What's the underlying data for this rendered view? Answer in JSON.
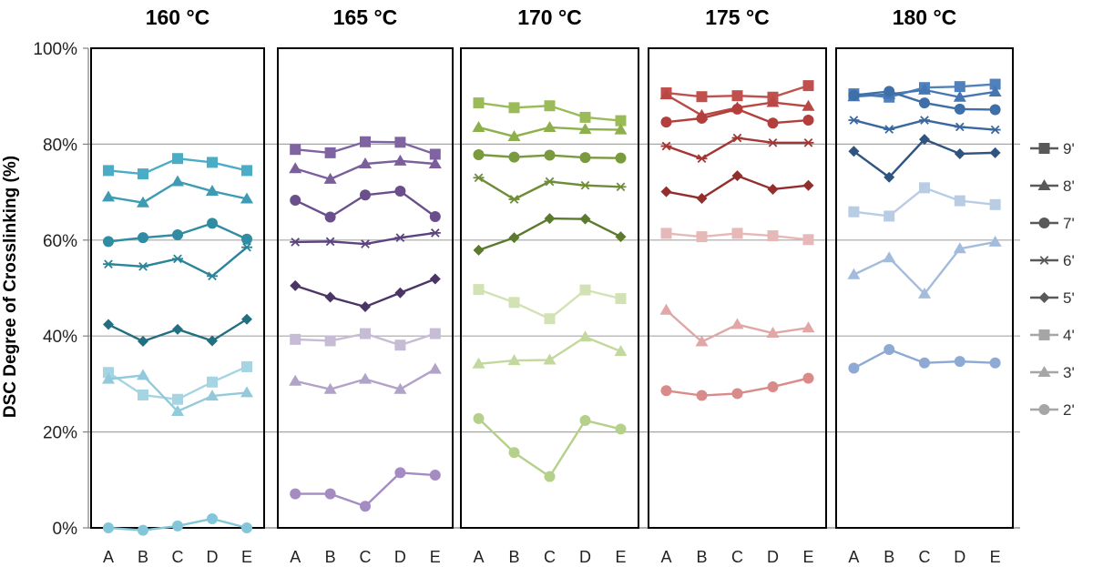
{
  "chart_data": {
    "type": "line",
    "ylabel": "DSC Degree of Crosslinking (%)",
    "ylim": [
      0,
      100
    ],
    "yticks": [
      "0%",
      "20%",
      "40%",
      "60%",
      "80%",
      "100%"
    ],
    "categories": [
      "A",
      "B",
      "C",
      "D",
      "E"
    ],
    "grid": "horizontal at 20% steps",
    "legend_position": "right",
    "legend": [
      {
        "name": "9'",
        "marker": "square"
      },
      {
        "name": "8'",
        "marker": "triangle"
      },
      {
        "name": "7'",
        "marker": "circle"
      },
      {
        "name": "6'",
        "marker": "star"
      },
      {
        "name": "5'",
        "marker": "diamond"
      },
      {
        "name": "4'",
        "marker": "square",
        "light": true
      },
      {
        "name": "3'",
        "marker": "triangle",
        "light": true
      },
      {
        "name": "2'",
        "marker": "circle",
        "light": true
      }
    ],
    "panels": [
      {
        "title": "160 °C",
        "series": [
          {
            "name": "9'",
            "marker": "square",
            "color": "#4bacc6",
            "values": [
              74.5,
              73.8,
              77,
              76.2,
              74.5
            ]
          },
          {
            "name": "8'",
            "marker": "triangle",
            "color": "#3d9cb4",
            "values": [
              69,
              67.8,
              72.2,
              70.2,
              68.6
            ]
          },
          {
            "name": "7'",
            "marker": "circle",
            "color": "#2f8ca2",
            "values": [
              59.7,
              60.5,
              61.1,
              63.5,
              60.2
            ]
          },
          {
            "name": "6'",
            "marker": "star",
            "color": "#2a8599",
            "values": [
              55,
              54.5,
              56.1,
              52.5,
              58.5
            ]
          },
          {
            "name": "5'",
            "marker": "diamond",
            "color": "#236f82",
            "values": [
              42.4,
              38.9,
              41.4,
              39,
              43.5
            ]
          },
          {
            "name": "4'",
            "marker": "square",
            "color": "#a5d4e3",
            "values": [
              32.4,
              27.7,
              26.8,
              30.4,
              33.6
            ]
          },
          {
            "name": "3'",
            "marker": "triangle",
            "color": "#92cadc",
            "values": [
              31,
              31.8,
              24.3,
              27.5,
              28.2
            ]
          },
          {
            "name": "2'",
            "marker": "circle",
            "color": "#83c6da",
            "values": [
              0,
              -0.5,
              0.4,
              1.9,
              0
            ]
          }
        ]
      },
      {
        "title": "165 °C",
        "series": [
          {
            "name": "9'",
            "marker": "square",
            "color": "#8064a2",
            "values": [
              78.9,
              78.2,
              80.5,
              80.4,
              77.9
            ]
          },
          {
            "name": "8'",
            "marker": "triangle",
            "color": "#7a5f9c",
            "values": [
              74.9,
              72.7,
              75.9,
              76.5,
              75.9
            ]
          },
          {
            "name": "7'",
            "marker": "circle",
            "color": "#6a4f8c",
            "values": [
              68.3,
              64.8,
              69.4,
              70.2,
              64.9
            ]
          },
          {
            "name": "6'",
            "marker": "star",
            "color": "#5c4480",
            "values": [
              59.6,
              59.7,
              59.2,
              60.5,
              61.5
            ]
          },
          {
            "name": "5'",
            "marker": "diamond",
            "color": "#4b3566",
            "values": [
              50.5,
              48.1,
              46.1,
              49,
              51.9
            ]
          },
          {
            "name": "4'",
            "marker": "square",
            "color": "#c7bcd6",
            "values": [
              39.3,
              39,
              40.5,
              38.1,
              40.5
            ]
          },
          {
            "name": "3'",
            "marker": "triangle",
            "color": "#b1a3c8",
            "values": [
              30.6,
              28.9,
              31,
              28.9,
              33.1
            ]
          },
          {
            "name": "2'",
            "marker": "circle",
            "color": "#a48cc3",
            "values": [
              7.1,
              7.1,
              4.5,
              11.5,
              11
            ]
          }
        ]
      },
      {
        "title": "170 °C",
        "series": [
          {
            "name": "9'",
            "marker": "square",
            "color": "#9bbb59",
            "values": [
              88.6,
              87.6,
              88,
              85.6,
              84.9
            ]
          },
          {
            "name": "8'",
            "marker": "triangle",
            "color": "#8eb04c",
            "values": [
              83.5,
              81.6,
              83.5,
              83.1,
              83
            ]
          },
          {
            "name": "7'",
            "marker": "circle",
            "color": "#7a9a3e",
            "values": [
              77.8,
              77.3,
              77.7,
              77.2,
              77.1
            ]
          },
          {
            "name": "6'",
            "marker": "star",
            "color": "#6e8d38",
            "values": [
              73,
              68.5,
              72.2,
              71.4,
              71.1
            ]
          },
          {
            "name": "5'",
            "marker": "diamond",
            "color": "#5c7a2e",
            "values": [
              57.9,
              60.5,
              64.5,
              64.4,
              60.7
            ]
          },
          {
            "name": "4'",
            "marker": "square",
            "color": "#d2e2b4",
            "values": [
              49.7,
              47,
              43.6,
              49.6,
              47.8
            ]
          },
          {
            "name": "3'",
            "marker": "triangle",
            "color": "#c2d89d",
            "values": [
              34.2,
              34.9,
              35,
              39.8,
              36.8
            ]
          },
          {
            "name": "2'",
            "marker": "circle",
            "color": "#b5d08a",
            "values": [
              22.8,
              15.7,
              10.7,
              22.4,
              20.6
            ]
          }
        ]
      },
      {
        "title": "175 °C",
        "series": [
          {
            "name": "9'",
            "marker": "square",
            "color": "#c0504d",
            "values": [
              90.7,
              89.9,
              90.1,
              89.8,
              92.2
            ]
          },
          {
            "name": "8'",
            "marker": "triangle",
            "color": "#b94744",
            "values": [
              90.3,
              86,
              87.6,
              88.7,
              87.9
            ]
          },
          {
            "name": "7'",
            "marker": "circle",
            "color": "#b23f3c",
            "values": [
              84.6,
              85.4,
              87.3,
              84.4,
              85
            ]
          },
          {
            "name": "6'",
            "marker": "star",
            "color": "#a33733",
            "values": [
              79.6,
              77,
              81.3,
              80.3,
              80.3
            ]
          },
          {
            "name": "5'",
            "marker": "diamond",
            "color": "#922f2c",
            "values": [
              70.1,
              68.7,
              73.4,
              70.6,
              71.4
            ]
          },
          {
            "name": "4'",
            "marker": "square",
            "color": "#e6b8b7",
            "values": [
              61.4,
              60.7,
              61.4,
              60.9,
              60.1
            ]
          },
          {
            "name": "3'",
            "marker": "triangle",
            "color": "#e0a7a6",
            "values": [
              45.4,
              38.8,
              42.4,
              40.6,
              41.7
            ]
          },
          {
            "name": "2'",
            "marker": "circle",
            "color": "#d98b8a",
            "values": [
              28.6,
              27.6,
              28,
              29.4,
              31.2
            ]
          }
        ]
      },
      {
        "title": "180 °C",
        "series": [
          {
            "name": "9'",
            "marker": "square",
            "color": "#4f81bd",
            "values": [
              90.5,
              89.8,
              91.8,
              92,
              92.5
            ]
          },
          {
            "name": "8'",
            "marker": "triangle",
            "color": "#4677b3",
            "values": [
              89.9,
              90.4,
              91.3,
              89.8,
              90.9
            ]
          },
          {
            "name": "7'",
            "marker": "circle",
            "color": "#3e6fa9",
            "values": [
              90.2,
              91,
              88.6,
              87.3,
              87.2
            ]
          },
          {
            "name": "6'",
            "marker": "star",
            "color": "#3b67a0",
            "values": [
              85,
              83.1,
              85,
              83.6,
              83
            ]
          },
          {
            "name": "5'",
            "marker": "diamond",
            "color": "#2f5480",
            "values": [
              78.5,
              73.1,
              81,
              78,
              78.2
            ]
          },
          {
            "name": "4'",
            "marker": "square",
            "color": "#b8cce4",
            "values": [
              65.9,
              65,
              70.9,
              68.2,
              67.4
            ]
          },
          {
            "name": "3'",
            "marker": "triangle",
            "color": "#a4bcdc",
            "values": [
              52.8,
              56.3,
              48.8,
              58.2,
              59.6
            ]
          },
          {
            "name": "2'",
            "marker": "circle",
            "color": "#8eaad4",
            "values": [
              33.3,
              37.2,
              34.4,
              34.7,
              34.4
            ]
          }
        ]
      }
    ]
  }
}
